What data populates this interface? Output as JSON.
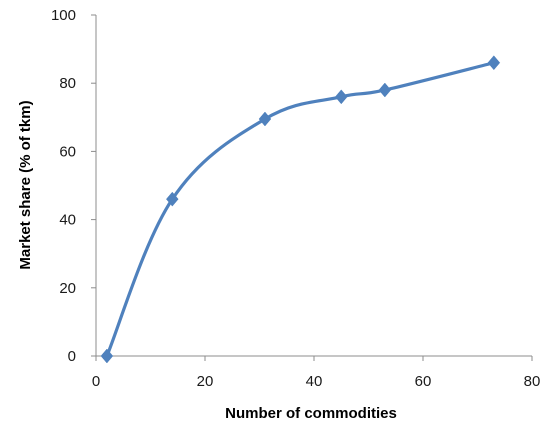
{
  "chart_data": {
    "type": "line",
    "title": "",
    "xlabel": "Number of commodities",
    "ylabel": "Market share (% of tkm)",
    "xlim": [
      0,
      80
    ],
    "ylim": [
      0,
      100
    ],
    "x_ticks": [
      "0",
      "20",
      "40",
      "60",
      "80"
    ],
    "y_ticks": [
      "0",
      "20",
      "40",
      "60",
      "80",
      "100"
    ],
    "grid": false,
    "legend": "none",
    "smoothed": true,
    "marker": "diamond",
    "series": [
      {
        "color": "#4f81bd",
        "points": [
          {
            "x": 2,
            "y": 0
          },
          {
            "x": 14,
            "y": 46
          },
          {
            "x": 31,
            "y": 69.5
          },
          {
            "x": 45,
            "y": 76
          },
          {
            "x": 53,
            "y": 78
          },
          {
            "x": 73,
            "y": 86
          }
        ]
      }
    ]
  }
}
